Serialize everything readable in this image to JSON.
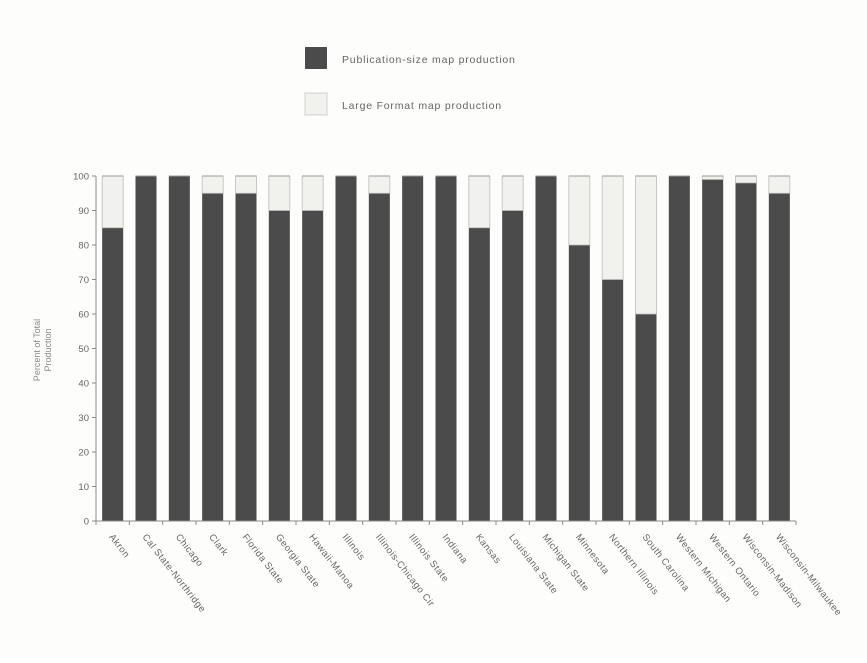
{
  "colors": {
    "publication": "#4a4b4a",
    "large_format": "#f1f1ee",
    "axis": "#8a8a8a",
    "text": "#666666",
    "background": "#fdfdfb"
  },
  "chart_data": {
    "type": "bar",
    "stacked": true,
    "title": "",
    "xlabel": "",
    "ylabel": "Percent of Total Production",
    "ylabel_lines": [
      "Percent of Total",
      "Production"
    ],
    "ylim": [
      0,
      100
    ],
    "yticks": [
      0,
      10,
      20,
      30,
      40,
      50,
      60,
      70,
      80,
      90,
      100
    ],
    "grid": false,
    "legend_position": "top",
    "categories": [
      "Akron",
      "Cal State-Northridge",
      "Chicago",
      "Clark",
      "Florida State",
      "Georgia State",
      "Hawaii-Manoa",
      "Illinois",
      "Illinois-Chicago Cir",
      "Illinois State",
      "Indiana",
      "Kansas",
      "Louisiana State",
      "Michigan State",
      "Minnesota",
      "Northern Illinois",
      "South Carolina",
      "Western Michigan",
      "Western Ontario",
      "Wisconsin-Madison",
      "Wisconsin-Milwaukee"
    ],
    "series": [
      {
        "name": "Publication-size map production",
        "values": [
          85,
          100,
          100,
          95,
          95,
          90,
          90,
          100,
          95,
          100,
          100,
          85,
          90,
          100,
          80,
          70,
          60,
          100,
          99,
          98,
          95
        ]
      },
      {
        "name": "Large Format map production",
        "values": [
          15,
          0,
          0,
          5,
          5,
          10,
          10,
          0,
          5,
          0,
          0,
          15,
          10,
          0,
          20,
          30,
          40,
          0,
          1,
          2,
          5
        ]
      }
    ]
  }
}
